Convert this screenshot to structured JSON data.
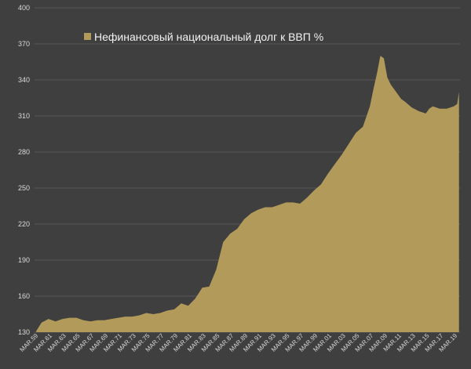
{
  "chart_data": {
    "type": "area",
    "ylim": [
      130,
      400
    ],
    "yticks": [
      130,
      160,
      190,
      220,
      250,
      280,
      310,
      340,
      370,
      400
    ],
    "grid": true,
    "legend_position": "top-left",
    "series": [
      {
        "name": "Нефинансовый национальный долг к ВВП %",
        "color": "#b29b5a",
        "x": [
          1959.25,
          1960,
          1961,
          1962,
          1963,
          1964,
          1965,
          1966,
          1967,
          1968,
          1969,
          1970,
          1971,
          1972,
          1973,
          1974,
          1975,
          1976,
          1977,
          1978,
          1979,
          1980,
          1981,
          1982,
          1983,
          1984,
          1985,
          1986,
          1987,
          1988,
          1989,
          1990,
          1991,
          1992,
          1993,
          1994,
          1995,
          1996,
          1997,
          1998,
          1999,
          2000,
          2001,
          2002,
          2003,
          2004,
          2005,
          2006,
          2007,
          2007.5,
          2008,
          2008.5,
          2009,
          2009.25,
          2009.5,
          2010,
          2011,
          2011.5,
          2012,
          2013,
          2014,
          2015,
          2015.5,
          2016,
          2017,
          2018,
          2019,
          2019.5,
          2019.75
        ],
        "values": [
          131,
          138,
          141,
          139,
          141,
          142,
          142,
          140,
          139,
          140,
          140,
          141,
          142,
          143,
          143,
          144,
          146,
          145,
          146,
          148,
          149,
          154,
          152,
          158,
          167,
          168,
          182,
          205,
          212,
          216,
          224,
          229,
          232,
          234,
          234,
          236,
          238,
          238,
          237,
          242,
          248,
          253,
          262,
          270,
          278,
          287,
          296,
          301,
          318,
          332,
          345,
          360,
          358,
          350,
          342,
          336,
          328,
          324,
          322,
          317,
          314,
          312,
          316,
          318,
          316,
          316,
          318,
          320,
          330
        ]
      }
    ],
    "x_tick_labels": [
      "MAR.59",
      "MAR.61",
      "MAR.63",
      "MAR.65",
      "MAR.67",
      "MAR.69",
      "MAR.71",
      "MAR.73",
      "MAR.75",
      "MAR.77",
      "MAR.79",
      "MAR.81",
      "MAR.83",
      "MAR.85",
      "MAR.87",
      "MAR.89",
      "MAR.91",
      "MAR.93",
      "MAR.95",
      "MAR.97",
      "MAR.99",
      "MAR.01",
      "MAR.03",
      "MAR.05",
      "MAR.07",
      "MAR.09",
      "MAR.11",
      "MAR.13",
      "MAR.15",
      "MAR.17",
      "MAR.19"
    ],
    "x_tick_years": [
      1959,
      1961,
      1963,
      1965,
      1967,
      1969,
      1971,
      1973,
      1975,
      1977,
      1979,
      1981,
      1983,
      1985,
      1987,
      1989,
      1991,
      1993,
      1995,
      1997,
      1999,
      2001,
      2003,
      2005,
      2007,
      2009,
      2011,
      2013,
      2015,
      2017,
      2019
    ]
  }
}
